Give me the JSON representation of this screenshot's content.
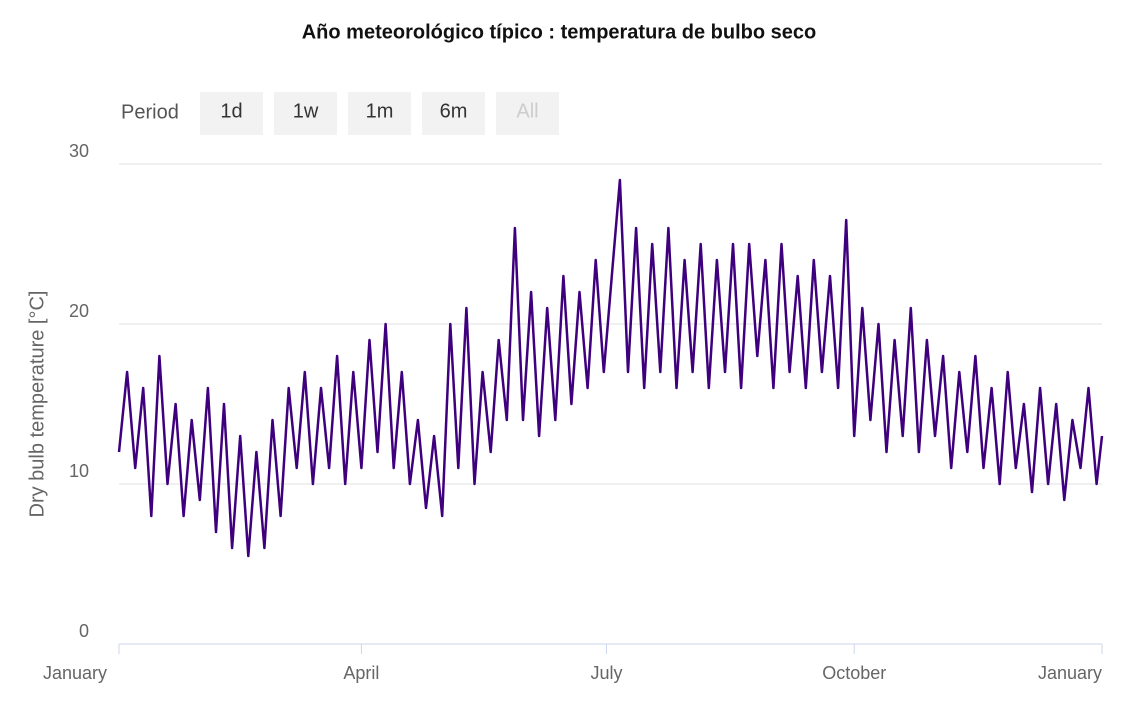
{
  "chart_data": {
    "type": "line",
    "title": "Año meteorológico típico : temperatura de bulbo seco",
    "range_selector": {
      "label": "Period",
      "buttons": [
        "1d",
        "1w",
        "1m",
        "6m",
        "All"
      ]
    },
    "y_label": "Dry bulb temperature [°C]",
    "xlim": [
      0,
      365
    ],
    "xticks": [
      {
        "value": 0,
        "label": "January"
      },
      {
        "value": 90,
        "label": "April"
      },
      {
        "value": 181,
        "label": "July"
      },
      {
        "value": 273,
        "label": "October"
      },
      {
        "value": 365,
        "label": "January"
      }
    ],
    "ylim": [
      0,
      30
    ],
    "yticks": [
      0,
      10,
      20,
      30
    ],
    "grid": true,
    "x": [
      0,
      3,
      6,
      9,
      12,
      15,
      18,
      21,
      24,
      27,
      30,
      33,
      36,
      39,
      42,
      45,
      48,
      51,
      54,
      57,
      60,
      63,
      66,
      69,
      72,
      75,
      78,
      81,
      84,
      87,
      90,
      93,
      96,
      99,
      102,
      105,
      108,
      111,
      114,
      117,
      120,
      123,
      126,
      129,
      132,
      135,
      138,
      141,
      144,
      147,
      150,
      153,
      156,
      159,
      162,
      165,
      168,
      171,
      174,
      177,
      180,
      183,
      186,
      189,
      192,
      195,
      198,
      201,
      204,
      207,
      210,
      213,
      216,
      219,
      222,
      225,
      228,
      231,
      234,
      237,
      240,
      243,
      246,
      249,
      252,
      255,
      258,
      261,
      264,
      267,
      270,
      273,
      276,
      279,
      282,
      285,
      288,
      291,
      294,
      297,
      300,
      303,
      306,
      309,
      312,
      315,
      318,
      321,
      324,
      327,
      330,
      333,
      336,
      339,
      342,
      345,
      348,
      351,
      354,
      357,
      360,
      363,
      365
    ],
    "series": [
      {
        "name": "Dry bulb temperature",
        "color": "#3f007d",
        "values": [
          12,
          17,
          11,
          16,
          8,
          18,
          10,
          15,
          8,
          14,
          9,
          16,
          7,
          15,
          6,
          13,
          5.5,
          12,
          6,
          14,
          8,
          16,
          11,
          17,
          10,
          16,
          11,
          18,
          10,
          17,
          11,
          19,
          12,
          20,
          11,
          17,
          10,
          14,
          8.5,
          13,
          8,
          20,
          11,
          21,
          10,
          17,
          12,
          19,
          14,
          26,
          14,
          22,
          13,
          21,
          14,
          23,
          15,
          22,
          16,
          24,
          17,
          23,
          29,
          17,
          26,
          16,
          25,
          17,
          26,
          16,
          24,
          17,
          25,
          16,
          24,
          17,
          25,
          16,
          25,
          18,
          24,
          16,
          25,
          17,
          23,
          16,
          24,
          17,
          23,
          16,
          26.5,
          13,
          21,
          14,
          20,
          12,
          19,
          13,
          21,
          12,
          19,
          13,
          18,
          11,
          17,
          12,
          18,
          11,
          16,
          10,
          17,
          11,
          15,
          9.5,
          16,
          10,
          15,
          9,
          14,
          11,
          16,
          10,
          13
        ]
      }
    ]
  }
}
